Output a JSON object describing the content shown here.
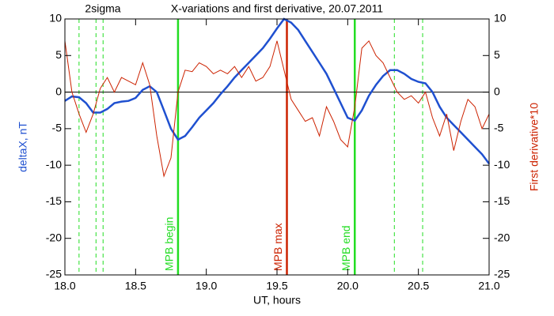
{
  "chart_data": {
    "type": "line",
    "title": "X-variations and first derivative, 20.07.2011",
    "subtitle": "2sigma",
    "x_label": "UT, hours",
    "y_label": "deltaX, nT",
    "y2_label": "First derivative*10",
    "x": [
      18.0,
      18.05,
      18.1,
      18.15,
      18.2,
      18.25,
      18.3,
      18.35,
      18.4,
      18.45,
      18.5,
      18.55,
      18.6,
      18.65,
      18.7,
      18.75,
      18.8,
      18.85,
      18.9,
      18.95,
      19.0,
      19.05,
      19.1,
      19.15,
      19.2,
      19.25,
      19.3,
      19.35,
      19.4,
      19.45,
      19.5,
      19.55,
      19.6,
      19.65,
      19.7,
      19.75,
      19.8,
      19.85,
      19.9,
      19.95,
      20.0,
      20.05,
      20.1,
      20.15,
      20.2,
      20.25,
      20.3,
      20.35,
      20.4,
      20.45,
      20.5,
      20.55,
      20.6,
      20.65,
      20.7,
      20.75,
      20.8,
      20.85,
      20.9,
      20.95,
      21.0
    ],
    "series": [
      {
        "name": "deltaX, nT",
        "color": "#1f50d0",
        "values": [
          -1.2,
          -0.6,
          -0.7,
          -1.5,
          -2.8,
          -2.8,
          -2.3,
          -1.5,
          -1.3,
          -1.2,
          -0.8,
          0.3,
          0.8,
          0,
          -2.5,
          -5,
          -6.5,
          -6,
          -4.8,
          -3.5,
          -2.5,
          -1.5,
          -0.3,
          0.8,
          2,
          3,
          4,
          5,
          6,
          7.3,
          8.7,
          10,
          9.5,
          8.5,
          7,
          5.5,
          4,
          2.5,
          0.5,
          -1.5,
          -3.5,
          -3.9,
          -2.5,
          -0.5,
          1,
          2.2,
          3,
          3,
          2.5,
          1.8,
          1.4,
          1.2,
          0,
          -2,
          -3.5,
          -4.5,
          -5.5,
          -6.5,
          -7.5,
          -8.5,
          -9.8
        ]
      },
      {
        "name": "First derivative*10",
        "color": "#cc2200",
        "axis": "y2",
        "values": [
          7,
          0,
          -3,
          -5.5,
          -3,
          0.5,
          2,
          0,
          2,
          1.5,
          1,
          4,
          1,
          -6,
          -11.5,
          -9,
          0,
          3,
          2.8,
          4,
          3.5,
          2.5,
          3,
          2.5,
          3.5,
          2,
          3.5,
          1.5,
          2,
          3.5,
          7,
          3,
          -1,
          -2.5,
          -4,
          -3.5,
          -6,
          -2,
          -4,
          -6.5,
          -7.5,
          -2,
          6,
          7,
          5,
          4,
          2,
          0,
          -1,
          -0.5,
          -1.5,
          0,
          -3.5,
          -6,
          -3,
          -8,
          -4,
          -1,
          -2,
          -5,
          -3
        ]
      }
    ],
    "xlim": [
      18.0,
      21.0
    ],
    "xticks": [
      {
        "value": 18.0,
        "label": "18.0"
      },
      {
        "value": 18.5,
        "label": "18.5"
      },
      {
        "value": 19.0,
        "label": "19.0"
      },
      {
        "value": 19.5,
        "label": "19.5"
      },
      {
        "value": 20.0,
        "label": "20.0"
      },
      {
        "value": 20.5,
        "label": "20.5"
      },
      {
        "value": 21.0,
        "label": "21.0"
      }
    ],
    "ylim": [
      -25,
      10
    ],
    "yticks": [
      10,
      5,
      0,
      -5,
      -10,
      -15,
      -20,
      -25
    ],
    "y2lim": [
      -25,
      10
    ],
    "y2ticks": [
      10,
      5,
      0,
      -5,
      -10,
      -15,
      -20,
      -25
    ],
    "zero_line": 0,
    "markers": [
      {
        "x": 18.8,
        "label": "MPB begin",
        "color": "#22dd22"
      },
      {
        "x": 19.57,
        "label": "MPB max",
        "color": "#cc2200"
      },
      {
        "x": 20.05,
        "label": "MPB end",
        "color": "#22dd22"
      }
    ],
    "sigma_lines": [
      18.1,
      18.22,
      18.27,
      20.33,
      20.53
    ],
    "sigma_color": "#22dd22"
  }
}
